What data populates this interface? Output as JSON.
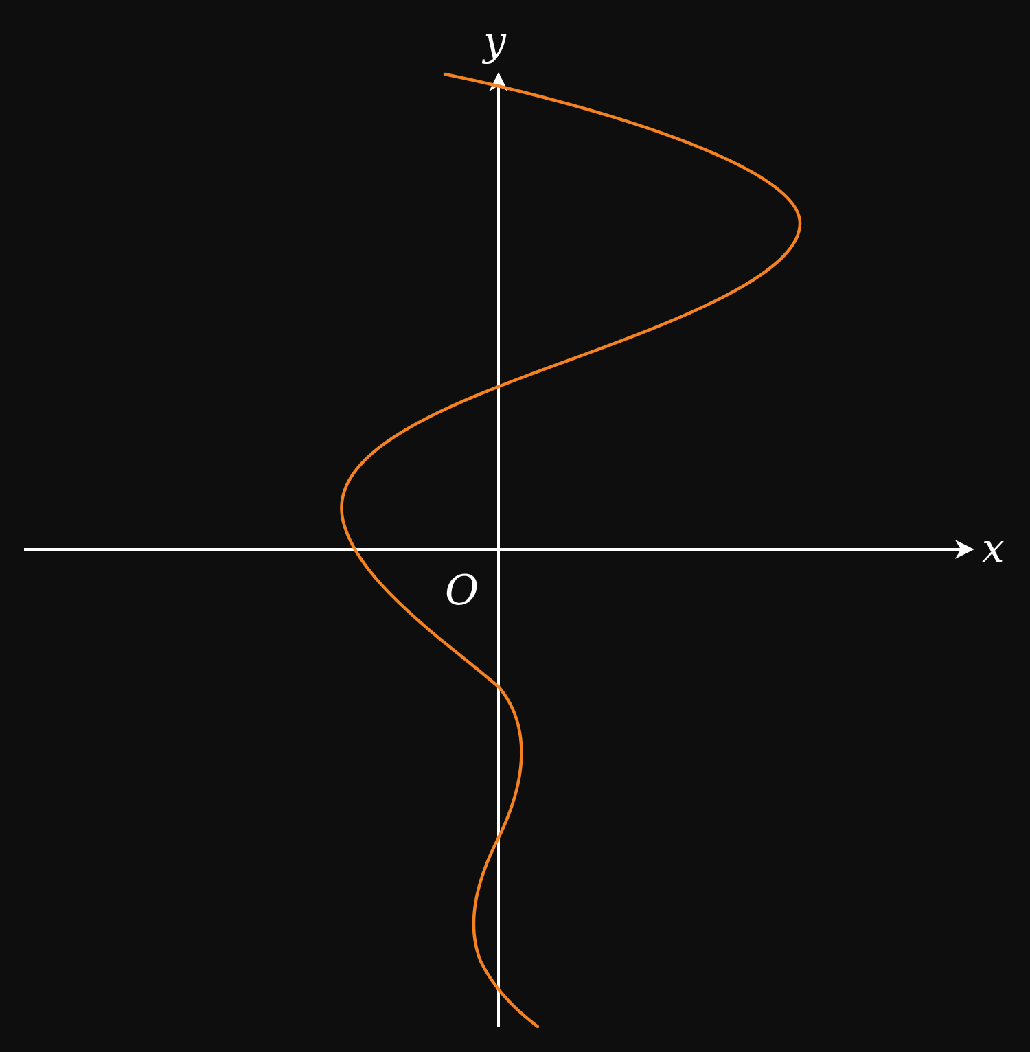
{
  "diagram": {
    "x_axis_label": "x",
    "y_axis_label": "y",
    "origin_label": "O"
  },
  "colors": {
    "background": "#0e0e0e",
    "axes": "#ffffff",
    "curve": "#f58220",
    "labels": "#ffffff"
  }
}
